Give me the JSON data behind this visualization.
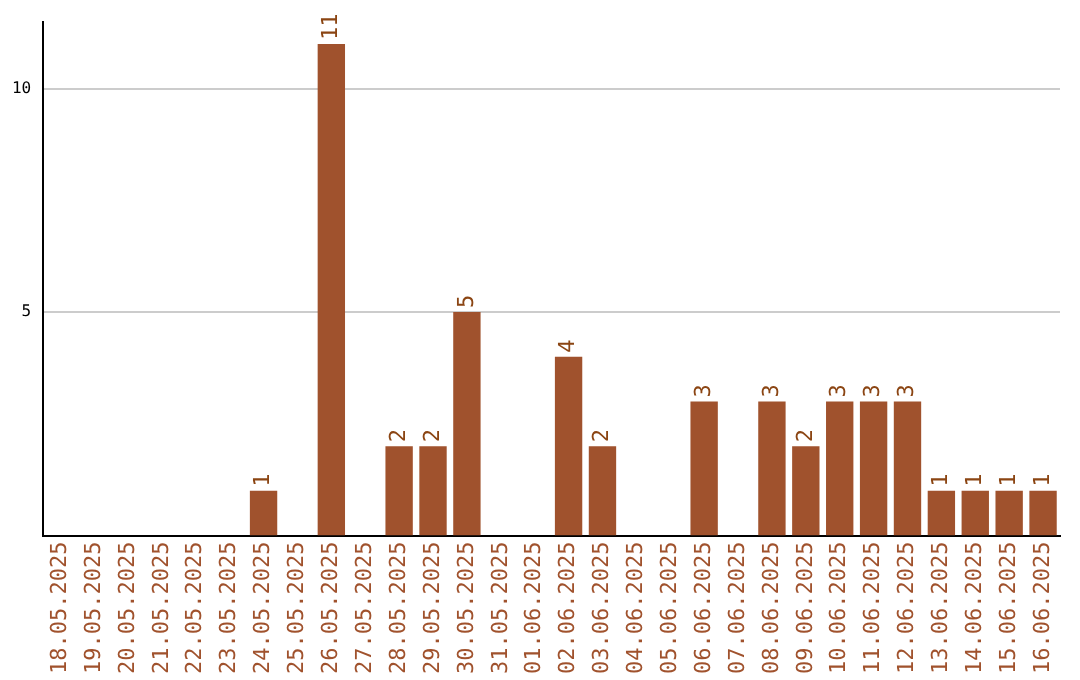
{
  "chart_data": {
    "type": "bar",
    "categories": [
      "18.05.2025",
      "19.05.2025",
      "20.05.2025",
      "21.05.2025",
      "22.05.2025",
      "23.05.2025",
      "24.05.2025",
      "25.05.2025",
      "26.05.2025",
      "27.05.2025",
      "28.05.2025",
      "29.05.2025",
      "30.05.2025",
      "31.05.2025",
      "01.06.2025",
      "02.06.2025",
      "03.06.2025",
      "04.06.2025",
      "05.06.2025",
      "06.06.2025",
      "07.06.2025",
      "08.06.2025",
      "09.06.2025",
      "10.06.2025",
      "11.06.2025",
      "12.06.2025",
      "13.06.2025",
      "14.06.2025",
      "15.06.2025",
      "16.06.2025"
    ],
    "values": [
      0,
      0,
      0,
      0,
      0,
      0,
      1,
      0,
      11,
      0,
      2,
      2,
      5,
      0,
      0,
      4,
      2,
      0,
      0,
      3,
      0,
      3,
      2,
      3,
      3,
      3,
      1,
      1,
      1,
      1
    ],
    "value_labels": [
      null,
      null,
      null,
      null,
      null,
      null,
      "1",
      null,
      "11",
      null,
      "2",
      "2",
      "5",
      null,
      null,
      "4",
      "2",
      null,
      null,
      "3",
      null,
      "3",
      "2",
      "3",
      "3",
      "3",
      "1",
      "1",
      "1",
      "1"
    ],
    "color": "#a0522d",
    "ylim": [
      0,
      11.5
    ],
    "yticks": [
      5,
      10
    ],
    "grid": "y"
  }
}
